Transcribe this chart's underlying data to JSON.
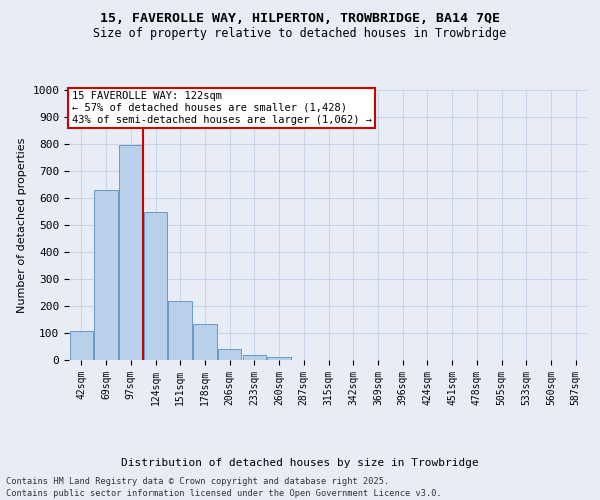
{
  "title_line1": "15, FAVEROLLE WAY, HILPERTON, TROWBRIDGE, BA14 7QE",
  "title_line2": "Size of property relative to detached houses in Trowbridge",
  "xlabel": "Distribution of detached houses by size in Trowbridge",
  "ylabel": "Number of detached properties",
  "footer_line1": "Contains HM Land Registry data © Crown copyright and database right 2025.",
  "footer_line2": "Contains public sector information licensed under the Open Government Licence v3.0.",
  "categories": [
    "42sqm",
    "69sqm",
    "97sqm",
    "124sqm",
    "151sqm",
    "178sqm",
    "206sqm",
    "233sqm",
    "260sqm",
    "287sqm",
    "315sqm",
    "342sqm",
    "369sqm",
    "396sqm",
    "424sqm",
    "451sqm",
    "478sqm",
    "505sqm",
    "533sqm",
    "560sqm",
    "587sqm"
  ],
  "values": [
    107,
    630,
    795,
    548,
    220,
    135,
    42,
    18,
    10,
    0,
    0,
    0,
    0,
    0,
    0,
    0,
    0,
    0,
    0,
    0,
    0
  ],
  "bar_color": "#b8d0ea",
  "bar_edge_color": "#6699cc",
  "grid_color": "#c8d4e8",
  "bg_color": "#e8edf5",
  "plot_bg_color": "#e8edf5",
  "vline_color": "#cc0000",
  "annotation_text": "15 FAVEROLLE WAY: 122sqm\n← 57% of detached houses are smaller (1,428)\n43% of semi-detached houses are larger (1,062) →",
  "annotation_box_color": "#ffffff",
  "annotation_box_edge": "#cc0000",
  "ylim": [
    0,
    1000
  ],
  "yticks": [
    0,
    100,
    200,
    300,
    400,
    500,
    600,
    700,
    800,
    900,
    1000
  ],
  "vline_index": 2.5
}
